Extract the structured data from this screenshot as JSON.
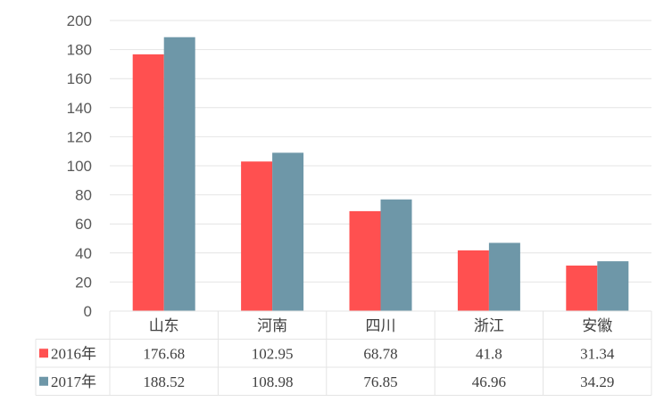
{
  "chart_data": {
    "type": "bar",
    "categories": [
      "山东",
      "河南",
      "四川",
      "浙江",
      "安徽"
    ],
    "series": [
      {
        "name": "2016年",
        "values": [
          176.68,
          102.95,
          68.78,
          41.8,
          31.34
        ],
        "value_labels": [
          "176.68",
          "102.95",
          "68.78",
          "41.8",
          "31.34"
        ],
        "color": "#ff5050"
      },
      {
        "name": "2017年",
        "values": [
          188.52,
          108.98,
          76.85,
          46.96,
          34.29
        ],
        "value_labels": [
          "188.52",
          "108.98",
          "76.85",
          "46.96",
          "34.29"
        ],
        "color": "#6e97a8"
      }
    ],
    "title": "",
    "xlabel": "",
    "ylabel": "",
    "ylim": [
      0,
      200
    ],
    "yticks": [
      0,
      20,
      40,
      60,
      80,
      100,
      120,
      140,
      160,
      180,
      200
    ],
    "grid": true,
    "legend": "data-table",
    "data_table": true
  }
}
